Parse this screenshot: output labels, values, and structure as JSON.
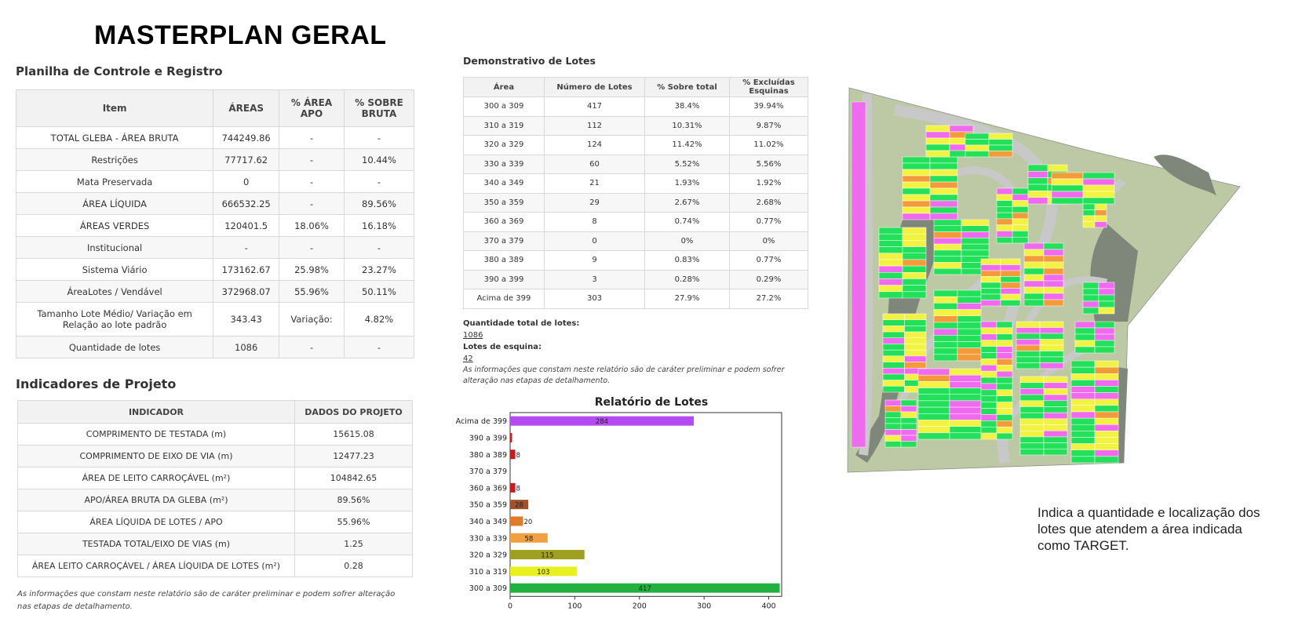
{
  "title": "MASTERPLAN GERAL",
  "control": {
    "heading": "Planilha de Controle e Registro",
    "headers": [
      "Item",
      "ÁREAS",
      "% ÁREA APO",
      "% SOBRE BRUTA"
    ],
    "rows": [
      [
        "TOTAL GLEBA - ÁREA BRUTA",
        "744249.86",
        "-",
        "-"
      ],
      [
        "Restrições",
        "77717.62",
        "-",
        "10.44%"
      ],
      [
        "Mata Preservada",
        "0",
        "-",
        "-"
      ],
      [
        "ÁREA LÍQUIDA",
        "666532.25",
        "-",
        "89.56%"
      ],
      [
        "ÁREAS VERDES",
        "120401.5",
        "18.06%",
        "16.18%"
      ],
      [
        "Institucional",
        "-",
        "-",
        "-"
      ],
      [
        "Sistema Viário",
        "173162.67",
        "25.98%",
        "23.27%"
      ],
      [
        "ÁreaLotes / Vendável",
        "372968.07",
        "55.96%",
        "50.11%"
      ],
      [
        "Tamanho Lote Médio/ Variação em Relação ao lote padrão",
        "343.43",
        "Variação:",
        "4.82%"
      ],
      [
        "Quantidade de lotes",
        "1086",
        "-",
        "-"
      ]
    ]
  },
  "indicators": {
    "heading": "Indicadores de Projeto",
    "headers": [
      "INDICADOR",
      "DADOS DO PROJETO"
    ],
    "rows": [
      [
        "COMPRIMENTO DE TESTADA (m)",
        "15615.08"
      ],
      [
        "COMPRIMENTO DE EIXO DE VIA (m)",
        "12477.23"
      ],
      [
        "ÁREA DE LEITO CARROÇÁVEL (m²)",
        "104842.65"
      ],
      [
        "APO/ÁREA BRUTA DA GLEBA (m²)",
        "89.56%"
      ],
      [
        "ÁREA LÍQUIDA DE LOTES / APO",
        "55.96%"
      ],
      [
        "TESTADA TOTAL/EIXO DE VIAS (m)",
        "1.25"
      ],
      [
        "ÁREA LEITO CARROÇÁVEL / ÁREA LÍQUIDA DE LOTES (m²)",
        "0.28"
      ]
    ],
    "note": "As informações que constam neste relatório são de caráter preliminar e podem sofrer alteração nas etapas de detalhamento."
  },
  "lots": {
    "heading": "Demonstrativo de Lotes",
    "headers": [
      "Área",
      "Número de Lotes",
      "% Sobre total",
      "% Excluídas Esquinas"
    ],
    "rows": [
      [
        "300 a 309",
        "417",
        "38.4%",
        "39.94%"
      ],
      [
        "310 a 319",
        "112",
        "10.31%",
        "9.87%"
      ],
      [
        "320 a 329",
        "124",
        "11.42%",
        "11.02%"
      ],
      [
        "330 a 339",
        "60",
        "5.52%",
        "5.56%"
      ],
      [
        "340 a 349",
        "21",
        "1.93%",
        "1.92%"
      ],
      [
        "350 a 359",
        "29",
        "2.67%",
        "2.68%"
      ],
      [
        "360 a 369",
        "8",
        "0.74%",
        "0.77%"
      ],
      [
        "370 a 379",
        "0",
        "0%",
        "0%"
      ],
      [
        "380 a 389",
        "9",
        "0.83%",
        "0.77%"
      ],
      [
        "390 a 399",
        "3",
        "0.28%",
        "0.29%"
      ],
      [
        "Acima de 399",
        "303",
        "27.9%",
        "27.2%"
      ]
    ],
    "total_label": "Quantidade total de lotes:",
    "total_value": "1086",
    "corner_label": "Lotes de esquina:",
    "corner_value": "42",
    "note": "As informações que constam neste relatório são de caráter preliminar e podem sofrer alteração nas etapas de detalhamento."
  },
  "chart_data": {
    "type": "bar",
    "orientation": "horizontal",
    "title": "Relatório de Lotes",
    "categories": [
      "Acima de 399",
      "390 a 399",
      "380 a 389",
      "370 a 379",
      "360 a 369",
      "350 a 359",
      "340 a 349",
      "330 a 339",
      "320 a 329",
      "310 a 319",
      "300 a 309"
    ],
    "values": [
      284,
      3,
      8,
      0,
      8,
      28,
      20,
      58,
      115,
      103,
      417
    ],
    "data_labels": [
      "284",
      "",
      "8",
      "",
      "8",
      "28",
      "20",
      "58",
      "115",
      "103",
      "417"
    ],
    "colors": [
      "#b44bf0",
      "#c02020",
      "#c02020",
      "#c02020",
      "#c02020",
      "#a0522d",
      "#e07b2a",
      "#f0a040",
      "#a0a020",
      "#e8f020",
      "#22b040"
    ],
    "xticks": [
      "0",
      "100",
      "200",
      "300",
      "400"
    ],
    "xlim": [
      0,
      420
    ],
    "grid": false
  },
  "map": {
    "target_note": "Indica a quantidade e localização dos lotes que atendem a área indicada como TARGET.",
    "colors": {
      "green": "#22e05a",
      "yellow": "#f2f240",
      "pink": "#f06af0",
      "orange": "#f39a3a",
      "red": "#e84040",
      "road": "#c8c8c8",
      "grass": "#bcc9a4",
      "lake": "#7f877a"
    }
  }
}
